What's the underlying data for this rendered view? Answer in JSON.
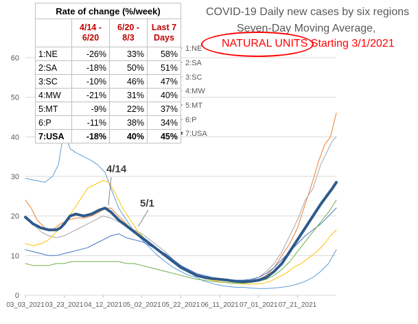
{
  "title": {
    "line1": "COVID-19 Daily new cases by six regions",
    "line2": "Seven-Day Moving Average,",
    "line3_a": "NATURAL UNITS",
    "line3_b": " Starting 3/1/2021",
    "oval_color": "#ff0000"
  },
  "table": {
    "header": "Rate of change (%/week)",
    "columns": [
      "4/14 - 6/20",
      "6/20 - 8/3",
      "Last 7 Days"
    ],
    "rows": [
      {
        "name": "1:NE",
        "values": [
          "-26%",
          "33%",
          "58%"
        ]
      },
      {
        "name": "2:SA",
        "values": [
          "-18%",
          "50%",
          "51%"
        ]
      },
      {
        "name": "3:SC",
        "values": [
          "-10%",
          "46%",
          "47%"
        ]
      },
      {
        "name": "4:MW",
        "values": [
          "-21%",
          "31%",
          "40%"
        ]
      },
      {
        "name": "5:MT",
        "values": [
          "-9%",
          "22%",
          "37%"
        ]
      },
      {
        "name": "6:P",
        "values": [
          "-11%",
          "38%",
          "34%"
        ]
      },
      {
        "name": "7:USA",
        "values": [
          "-18%",
          "40%",
          "45%"
        ]
      }
    ]
  },
  "chart_data": {
    "type": "line",
    "x_ticks": [
      "03_03_2021",
      "03_23_2021",
      "04_12_2021",
      "05_02_2021",
      "05_22_2021",
      "06_11_2021",
      "07_01_2021",
      "07_21_2021"
    ],
    "x_tick_days": [
      0,
      20,
      40,
      60,
      80,
      100,
      120,
      140
    ],
    "x_range_days": [
      0,
      160
    ],
    "ylim": [
      0,
      60
    ],
    "y_ticks": [
      0,
      10,
      20,
      30,
      40,
      50,
      60
    ],
    "grid": true,
    "legend_position": "right",
    "series": [
      {
        "name": "1:NE",
        "color": "#5b9bd5",
        "width": 1,
        "points": [
          [
            0,
            29.5
          ],
          [
            5,
            29
          ],
          [
            10,
            28.5
          ],
          [
            14,
            30
          ],
          [
            17,
            33
          ],
          [
            19,
            39
          ],
          [
            21,
            40
          ],
          [
            23,
            37
          ],
          [
            26,
            36
          ],
          [
            30,
            35
          ],
          [
            34,
            34
          ],
          [
            37,
            33
          ],
          [
            41,
            31
          ],
          [
            44,
            27
          ],
          [
            48,
            22
          ],
          [
            52,
            19
          ],
          [
            56,
            16
          ],
          [
            60,
            14
          ],
          [
            64,
            12
          ],
          [
            68,
            10
          ],
          [
            72,
            8.5
          ],
          [
            76,
            7
          ],
          [
            80,
            6
          ],
          [
            84,
            5
          ],
          [
            88,
            4.5
          ],
          [
            92,
            3.5
          ],
          [
            96,
            3
          ],
          [
            100,
            2.5
          ],
          [
            104,
            2.2
          ],
          [
            108,
            2
          ],
          [
            112,
            2
          ],
          [
            116,
            1.8
          ],
          [
            120,
            1.7
          ],
          [
            124,
            1.7
          ],
          [
            128,
            1.8
          ],
          [
            132,
            2
          ],
          [
            136,
            2.3
          ],
          [
            140,
            2.8
          ],
          [
            144,
            3.5
          ],
          [
            148,
            4.5
          ],
          [
            152,
            6
          ],
          [
            156,
            8
          ],
          [
            160,
            11.5
          ]
        ]
      },
      {
        "name": "2:SA",
        "color": "#ed7d31",
        "width": 1,
        "points": [
          [
            0,
            24
          ],
          [
            3,
            22
          ],
          [
            6,
            19
          ],
          [
            10,
            17
          ],
          [
            14,
            16.5
          ],
          [
            18,
            18
          ],
          [
            22,
            19
          ],
          [
            26,
            19.5
          ],
          [
            30,
            19.5
          ],
          [
            34,
            20
          ],
          [
            38,
            21
          ],
          [
            41,
            22
          ],
          [
            44,
            22
          ],
          [
            48,
            20
          ],
          [
            52,
            18
          ],
          [
            56,
            16
          ],
          [
            60,
            14.5
          ],
          [
            64,
            13
          ],
          [
            68,
            11.5
          ],
          [
            72,
            10
          ],
          [
            76,
            8.5
          ],
          [
            80,
            7
          ],
          [
            84,
            6
          ],
          [
            88,
            5
          ],
          [
            92,
            4.5
          ],
          [
            96,
            4
          ],
          [
            100,
            4
          ],
          [
            104,
            3.8
          ],
          [
            108,
            3.5
          ],
          [
            112,
            3.5
          ],
          [
            116,
            3.5
          ],
          [
            120,
            4
          ],
          [
            124,
            5
          ],
          [
            128,
            7
          ],
          [
            132,
            10
          ],
          [
            136,
            13
          ],
          [
            140,
            17
          ],
          [
            144,
            23
          ],
          [
            148,
            29
          ],
          [
            151,
            34
          ],
          [
            154,
            38
          ],
          [
            157,
            40
          ],
          [
            159,
            44
          ],
          [
            160,
            46
          ]
        ]
      },
      {
        "name": "3:SC",
        "color": "#a5a5a5",
        "width": 1,
        "points": [
          [
            0,
            20
          ],
          [
            4,
            18
          ],
          [
            8,
            16
          ],
          [
            12,
            15
          ],
          [
            16,
            14.5
          ],
          [
            20,
            15
          ],
          [
            24,
            16
          ],
          [
            28,
            17
          ],
          [
            32,
            18
          ],
          [
            36,
            19
          ],
          [
            40,
            20
          ],
          [
            44,
            19.5
          ],
          [
            48,
            18.5
          ],
          [
            52,
            17.5
          ],
          [
            56,
            16.5
          ],
          [
            60,
            15.5
          ],
          [
            64,
            14
          ],
          [
            68,
            12.5
          ],
          [
            72,
            11
          ],
          [
            76,
            9
          ],
          [
            80,
            7.5
          ],
          [
            84,
            6
          ],
          [
            88,
            5
          ],
          [
            92,
            4.5
          ],
          [
            96,
            4.2
          ],
          [
            100,
            4
          ],
          [
            104,
            3.8
          ],
          [
            108,
            3.5
          ],
          [
            112,
            3.5
          ],
          [
            116,
            3.8
          ],
          [
            120,
            4.5
          ],
          [
            124,
            6
          ],
          [
            128,
            8
          ],
          [
            132,
            11
          ],
          [
            136,
            15
          ],
          [
            140,
            19
          ],
          [
            144,
            24
          ],
          [
            148,
            27
          ],
          [
            152,
            33
          ],
          [
            155,
            36
          ],
          [
            158,
            39
          ],
          [
            160,
            40
          ]
        ]
      },
      {
        "name": "4:MW",
        "color": "#ffc000",
        "width": 1,
        "points": [
          [
            0,
            13
          ],
          [
            4,
            12.5
          ],
          [
            8,
            13
          ],
          [
            12,
            14
          ],
          [
            16,
            16
          ],
          [
            20,
            18
          ],
          [
            24,
            21
          ],
          [
            28,
            24
          ],
          [
            32,
            27
          ],
          [
            36,
            28
          ],
          [
            40,
            29
          ],
          [
            43,
            28.5
          ],
          [
            46,
            26
          ],
          [
            50,
            22
          ],
          [
            54,
            19
          ],
          [
            58,
            16
          ],
          [
            62,
            14
          ],
          [
            66,
            12
          ],
          [
            70,
            10.5
          ],
          [
            74,
            9
          ],
          [
            78,
            7.5
          ],
          [
            82,
            6.5
          ],
          [
            86,
            5.5
          ],
          [
            90,
            4.5
          ],
          [
            94,
            4
          ],
          [
            98,
            3.6
          ],
          [
            102,
            3.3
          ],
          [
            106,
            3
          ],
          [
            110,
            2.9
          ],
          [
            114,
            2.8
          ],
          [
            118,
            2.8
          ],
          [
            122,
            3
          ],
          [
            126,
            3.5
          ],
          [
            130,
            4.5
          ],
          [
            134,
            5.5
          ],
          [
            138,
            7
          ],
          [
            142,
            8
          ],
          [
            146,
            9.5
          ],
          [
            150,
            11
          ],
          [
            154,
            13
          ],
          [
            157,
            15
          ],
          [
            160,
            16.5
          ]
        ]
      },
      {
        "name": "5:MT",
        "color": "#4472c4",
        "width": 1,
        "points": [
          [
            0,
            11.5
          ],
          [
            4,
            11
          ],
          [
            8,
            10.5
          ],
          [
            12,
            10
          ],
          [
            16,
            10
          ],
          [
            20,
            10.5
          ],
          [
            24,
            11
          ],
          [
            28,
            11.5
          ],
          [
            32,
            12
          ],
          [
            36,
            13
          ],
          [
            40,
            14
          ],
          [
            44,
            15
          ],
          [
            48,
            15.5
          ],
          [
            52,
            14.5
          ],
          [
            56,
            14
          ],
          [
            60,
            13.5
          ],
          [
            64,
            12.5
          ],
          [
            68,
            11.5
          ],
          [
            72,
            10.5
          ],
          [
            76,
            9
          ],
          [
            80,
            7.5
          ],
          [
            84,
            6.5
          ],
          [
            88,
            5.5
          ],
          [
            92,
            5
          ],
          [
            96,
            4.5
          ],
          [
            100,
            4.2
          ],
          [
            104,
            4
          ],
          [
            108,
            3.8
          ],
          [
            112,
            3.8
          ],
          [
            116,
            4
          ],
          [
            120,
            4.5
          ],
          [
            124,
            5.5
          ],
          [
            128,
            7
          ],
          [
            132,
            9
          ],
          [
            136,
            11
          ],
          [
            140,
            13
          ],
          [
            144,
            15
          ],
          [
            148,
            16.5
          ],
          [
            152,
            18
          ],
          [
            156,
            20
          ],
          [
            160,
            22
          ]
        ]
      },
      {
        "name": "6:P",
        "color": "#70ad47",
        "width": 1,
        "points": [
          [
            0,
            8
          ],
          [
            4,
            7.5
          ],
          [
            8,
            7.5
          ],
          [
            12,
            7.5
          ],
          [
            16,
            8
          ],
          [
            20,
            8
          ],
          [
            24,
            8.5
          ],
          [
            28,
            8.5
          ],
          [
            32,
            8.5
          ],
          [
            36,
            8.5
          ],
          [
            40,
            8.5
          ],
          [
            44,
            8.5
          ],
          [
            48,
            8.5
          ],
          [
            52,
            8
          ],
          [
            56,
            8
          ],
          [
            60,
            7.5
          ],
          [
            64,
            7
          ],
          [
            68,
            6.5
          ],
          [
            72,
            6
          ],
          [
            76,
            5.5
          ],
          [
            80,
            5
          ],
          [
            84,
            4.5
          ],
          [
            88,
            4
          ],
          [
            92,
            3.8
          ],
          [
            96,
            3.5
          ],
          [
            100,
            3.3
          ],
          [
            104,
            3.2
          ],
          [
            108,
            3
          ],
          [
            112,
            3
          ],
          [
            116,
            3.2
          ],
          [
            120,
            3.5
          ],
          [
            124,
            4
          ],
          [
            128,
            5
          ],
          [
            132,
            6.5
          ],
          [
            136,
            8.5
          ],
          [
            140,
            11
          ],
          [
            144,
            13.5
          ],
          [
            148,
            16
          ],
          [
            152,
            18.5
          ],
          [
            156,
            21
          ],
          [
            160,
            24
          ]
        ]
      },
      {
        "name": "7:USA",
        "color": "#2e5b8a",
        "width": 4,
        "points": [
          [
            0,
            19.7
          ],
          [
            4,
            18
          ],
          [
            8,
            17
          ],
          [
            12,
            16.5
          ],
          [
            16,
            16.5
          ],
          [
            18,
            17
          ],
          [
            20,
            18
          ],
          [
            23,
            20
          ],
          [
            26,
            20.5
          ],
          [
            30,
            20
          ],
          [
            34,
            20.5
          ],
          [
            38,
            21.5
          ],
          [
            41,
            22
          ],
          [
            44,
            21
          ],
          [
            48,
            19
          ],
          [
            52,
            17.5
          ],
          [
            56,
            16
          ],
          [
            60,
            14.5
          ],
          [
            64,
            13
          ],
          [
            68,
            11.5
          ],
          [
            72,
            10
          ],
          [
            76,
            8.5
          ],
          [
            80,
            7
          ],
          [
            84,
            6
          ],
          [
            88,
            5
          ],
          [
            92,
            4.5
          ],
          [
            96,
            4.2
          ],
          [
            100,
            4
          ],
          [
            104,
            3.8
          ],
          [
            108,
            3.5
          ],
          [
            112,
            3.4
          ],
          [
            116,
            3.5
          ],
          [
            120,
            3.8
          ],
          [
            124,
            4.5
          ],
          [
            128,
            6
          ],
          [
            132,
            8
          ],
          [
            136,
            11
          ],
          [
            140,
            14
          ],
          [
            144,
            17
          ],
          [
            148,
            20
          ],
          [
            152,
            23
          ],
          [
            155,
            25
          ],
          [
            158,
            27
          ],
          [
            160,
            28.5
          ]
        ]
      }
    ],
    "annotations": [
      {
        "text": "4/14",
        "x": 42,
        "y": 22
      },
      {
        "text": "5/1",
        "x": 58,
        "y": 17
      }
    ]
  }
}
